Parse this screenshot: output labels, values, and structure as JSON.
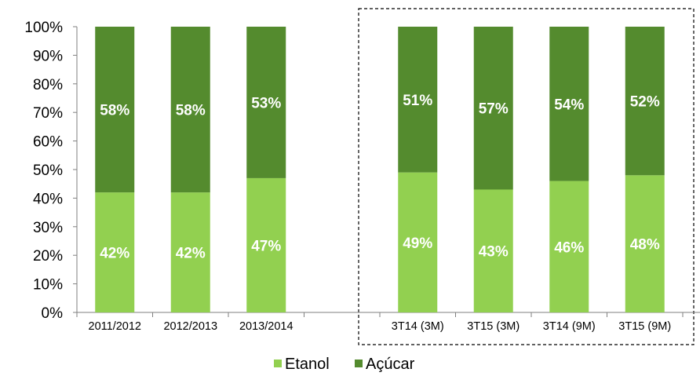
{
  "chart_data": {
    "type": "bar",
    "stacked": true,
    "percent": true,
    "categories": [
      "2011/2012",
      "2012/2013",
      "2013/2014",
      "",
      "3T14 (3M)",
      "3T15 (3M)",
      "3T14 (9M)",
      "3T15 (9M)"
    ],
    "series": [
      {
        "name": "Etanol",
        "values": [
          42,
          42,
          47,
          null,
          49,
          43,
          46,
          48
        ],
        "labels": [
          "42%",
          "42%",
          "47%",
          "",
          "49%",
          "43%",
          "46%",
          "48%"
        ]
      },
      {
        "name": "Açúcar",
        "values": [
          58,
          58,
          53,
          null,
          51,
          57,
          54,
          52
        ],
        "labels": [
          "58%",
          "58%",
          "53%",
          "",
          "51%",
          "57%",
          "54%",
          "52%"
        ]
      }
    ],
    "ylim": [
      0,
      100
    ],
    "yticks": [
      "0%",
      "10%",
      "20%",
      "30%",
      "40%",
      "50%",
      "60%",
      "70%",
      "80%",
      "90%",
      "100%"
    ],
    "grid": false,
    "legend_position": "bottom",
    "highlight_box": "dashed box around quarterly categories",
    "colors": {
      "Etanol": "#92D050",
      "Açúcar": "#548B2E"
    }
  }
}
